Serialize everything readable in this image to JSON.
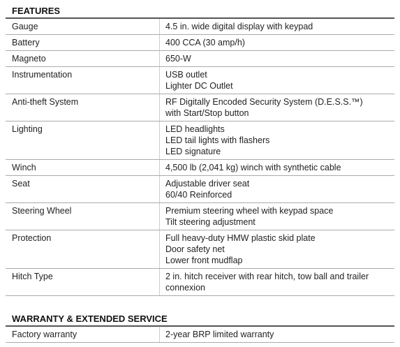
{
  "sections": [
    {
      "title": "FEATURES",
      "rows": [
        {
          "label": "Gauge",
          "lines": [
            "4.5 in. wide digital display with keypad"
          ]
        },
        {
          "label": "Battery",
          "lines": [
            "400 CCA (30 amp/h)"
          ]
        },
        {
          "label": "Magneto",
          "lines": [
            "650-W"
          ]
        },
        {
          "label": "Instrumentation",
          "lines": [
            "USB outlet",
            "Lighter DC Outlet"
          ]
        },
        {
          "label": "Anti-theft System",
          "lines": [
            "RF Digitally Encoded Security System (D.E.S.S.™)",
            "with Start/Stop button"
          ]
        },
        {
          "label": "Lighting",
          "lines": [
            "LED headlights",
            "LED tail lights with flashers",
            "LED signature"
          ]
        },
        {
          "label": "Winch",
          "lines": [
            "4,500 lb (2,041 kg) winch with synthetic cable"
          ]
        },
        {
          "label": "Seat",
          "lines": [
            "Adjustable driver seat",
            "60/40 Reinforced"
          ]
        },
        {
          "label": "Steering Wheel",
          "lines": [
            "Premium steering wheel with keypad space",
            "Tilt steering adjustment"
          ]
        },
        {
          "label": "Protection",
          "lines": [
            "Full heavy-duty HMW plastic skid plate",
            "Door safety net",
            "Lower front mudflap"
          ]
        },
        {
          "label": "Hitch Type",
          "lines": [
            "2 in. hitch receiver with rear hitch, tow ball and trailer",
            "connexion"
          ]
        }
      ]
    },
    {
      "title": "WARRANTY & EXTENDED SERVICE",
      "rows": [
        {
          "label": "Factory  warranty",
          "lines": [
            "2-year BRP limited warranty"
          ]
        }
      ]
    }
  ]
}
